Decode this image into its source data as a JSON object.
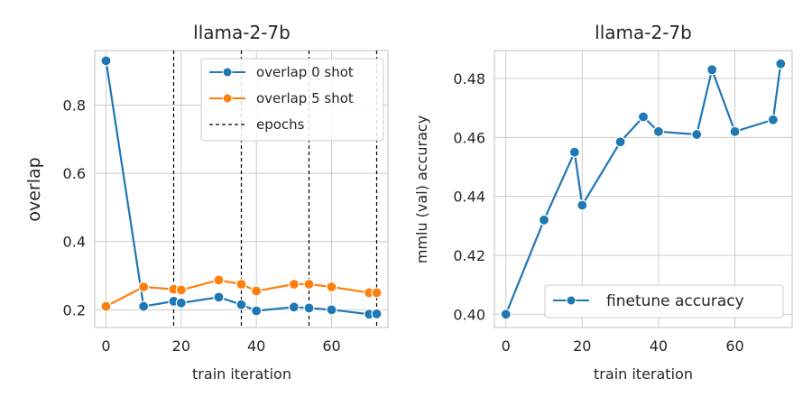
{
  "chart_data": [
    {
      "type": "line",
      "title": "llama-2-7b",
      "xlabel": "train iteration",
      "ylabel": "overlap",
      "xlim": [
        -3,
        75
      ],
      "ylim": [
        0.148,
        0.96
      ],
      "xticks": [
        0,
        20,
        40,
        60
      ],
      "yticks": [
        0.2,
        0.4,
        0.6,
        0.8
      ],
      "xtick_labels": [
        "0",
        "20",
        "40",
        "60"
      ],
      "ytick_labels": [
        "0.2",
        "0.4",
        "0.6",
        "0.8"
      ],
      "grid": true,
      "legend_position": "top-right",
      "series": [
        {
          "name": "overlap 0 shot",
          "color": "#1f77b4",
          "x": [
            0,
            10,
            18,
            20,
            30,
            36,
            40,
            50,
            54,
            60,
            70,
            72
          ],
          "y": [
            0.93,
            0.21,
            0.225,
            0.22,
            0.237,
            0.215,
            0.197,
            0.208,
            0.205,
            0.2,
            0.187,
            0.188
          ]
        },
        {
          "name": "overlap 5 shot",
          "color": "#ff7f0e",
          "x": [
            0,
            10,
            18,
            20,
            30,
            36,
            40,
            50,
            54,
            60,
            70,
            72
          ],
          "y": [
            0.21,
            0.267,
            0.26,
            0.258,
            0.287,
            0.275,
            0.255,
            0.275,
            0.275,
            0.267,
            0.25,
            0.25
          ]
        }
      ],
      "vlines": {
        "name": "epochs",
        "x": [
          18,
          36,
          54,
          72
        ],
        "color": "#000000"
      }
    },
    {
      "type": "line",
      "title": "llama-2-7b",
      "xlabel": "train iteration",
      "ylabel": "mmlu (val) accuracy",
      "xlim": [
        -3,
        75
      ],
      "ylim": [
        0.3955,
        0.4895
      ],
      "xticks": [
        0,
        20,
        40,
        60
      ],
      "yticks": [
        0.4,
        0.42,
        0.44,
        0.46,
        0.48
      ],
      "xtick_labels": [
        "0",
        "20",
        "40",
        "60"
      ],
      "ytick_labels": [
        "0.40",
        "0.42",
        "0.44",
        "0.46",
        "0.48"
      ],
      "grid": true,
      "legend_position": "bottom-right",
      "series": [
        {
          "name": "finetune accuracy",
          "color": "#1f77b4",
          "x": [
            0,
            10,
            18,
            20,
            30,
            36,
            40,
            50,
            54,
            60,
            70,
            72
          ],
          "y": [
            0.4,
            0.432,
            0.455,
            0.437,
            0.4585,
            0.467,
            0.462,
            0.461,
            0.483,
            0.462,
            0.466,
            0.485
          ]
        }
      ]
    }
  ]
}
